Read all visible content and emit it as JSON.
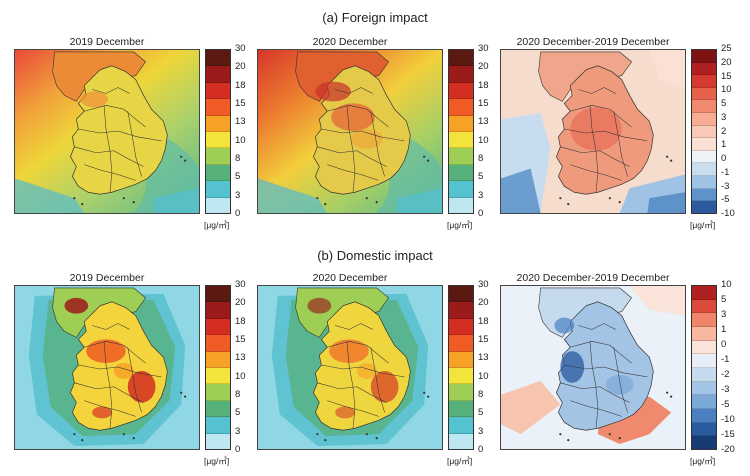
{
  "sections": [
    {
      "title": "(a) Foreign impact",
      "panels": [
        {
          "title": "2019 December",
          "scale": "pos",
          "variant": "f2019"
        },
        {
          "title": "2020 December",
          "scale": "pos",
          "variant": "f2020"
        },
        {
          "title": "2020 December-2019 December",
          "scale": "diffA",
          "variant": "fdiff"
        }
      ]
    },
    {
      "title": "(b) Domestic impact",
      "panels": [
        {
          "title": "2019 December",
          "scale": "pos",
          "variant": "d2019"
        },
        {
          "title": "2020 December",
          "scale": "pos",
          "variant": "d2020"
        },
        {
          "title": "2020 December-2019 December",
          "scale": "diffB",
          "variant": "ddiff"
        }
      ]
    }
  ],
  "unit": "[μg/㎥]",
  "scales": {
    "pos": {
      "labels": [
        "30",
        "20",
        "18",
        "15",
        "13",
        "10",
        "8",
        "5",
        "3",
        "0"
      ],
      "colors": [
        "#5a1a12",
        "#9b1b1b",
        "#d42d22",
        "#ef5a25",
        "#f7a127",
        "#f2e43a",
        "#9fce55",
        "#55b07a",
        "#54c2cf",
        "#bfe7f1"
      ]
    },
    "diffA": {
      "labels": [
        "25",
        "20",
        "15",
        "10",
        "5",
        "3",
        "2",
        "1",
        "0",
        "-1",
        "-3",
        "-5",
        "-10"
      ],
      "colors": [
        "#7d1414",
        "#b01f1f",
        "#d43b30",
        "#e5614c",
        "#ef8a6e",
        "#f5ad95",
        "#f8c9b6",
        "#fbe1d5",
        "#eef2f7",
        "#c9ddef",
        "#9ec3e4",
        "#5d93c9",
        "#2b5a9e"
      ]
    },
    "diffB": {
      "labels": [
        "10",
        "5",
        "3",
        "1",
        "0",
        "-1",
        "-2",
        "-3",
        "-5",
        "-10",
        "-15",
        "-20"
      ],
      "colors": [
        "#b01f1f",
        "#dc4a3c",
        "#ef8468",
        "#f7b8a0",
        "#fae3d8",
        "#e7eef7",
        "#c6daee",
        "#a3c4e4",
        "#7aa8d7",
        "#4a80c0",
        "#2a5a9f",
        "#183b73"
      ]
    }
  }
}
